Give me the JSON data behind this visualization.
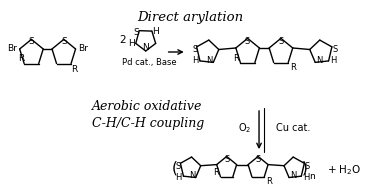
{
  "bg_color": "#ffffff",
  "fig_width": 3.65,
  "fig_height": 1.89,
  "text_color": "#000000",
  "label_direct_arylation": "Direct arylation",
  "label_aerobic": "Aerobic oxidative\nC-H/C-H coupling",
  "label_pd": "Pd cat., Base",
  "label_o2": "O$_2$",
  "label_cu": "Cu cat.",
  "label_h2o": "+ H$_2$O"
}
